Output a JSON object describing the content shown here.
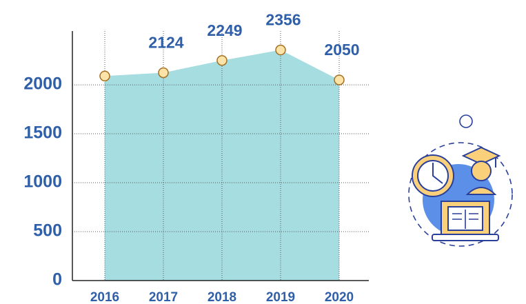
{
  "chart_data": {
    "type": "area",
    "categories": [
      "2016",
      "2017",
      "2018",
      "2019",
      "2020"
    ],
    "values": [
      2090,
      2124,
      2249,
      2356,
      2050
    ],
    "value_labels": [
      null,
      "2124",
      "2249",
      "2356",
      "2050"
    ],
    "color": "#a6dde0",
    "ylim": [
      0,
      2550
    ],
    "yticks": [
      0,
      500,
      1000,
      1500,
      2000
    ],
    "grid": true
  }
}
